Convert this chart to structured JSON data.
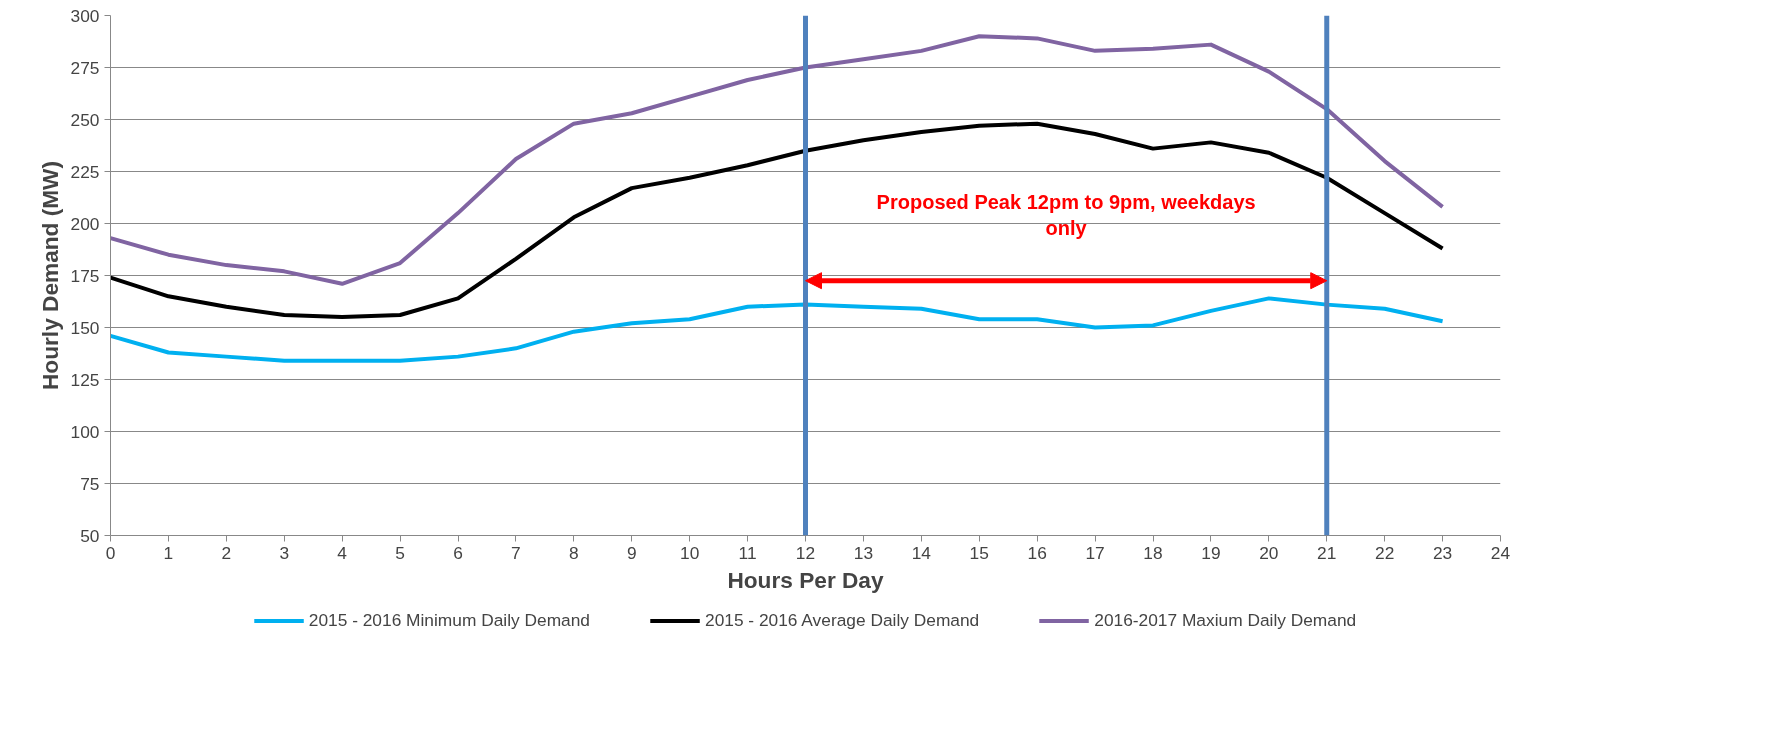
{
  "chart_data": {
    "type": "line",
    "xlabel": "Hours Per Day",
    "ylabel": "Hourly Demand (MW)",
    "x": [
      0,
      1,
      2,
      3,
      4,
      5,
      6,
      7,
      8,
      9,
      10,
      11,
      12,
      13,
      14,
      15,
      16,
      17,
      18,
      19,
      20,
      21,
      22,
      23
    ],
    "series": [
      {
        "name": "2015 - 2016 Minimum Daily Demand",
        "color": "#00b0f0",
        "values": [
          146,
          138,
          136,
          134,
          134,
          134,
          136,
          140,
          148,
          152,
          154,
          160,
          161,
          160,
          159,
          154,
          154,
          150,
          151,
          158,
          164,
          161,
          159,
          153
        ]
      },
      {
        "name": "2015 - 2016 Average Daily Demand",
        "color": "#000000",
        "values": [
          174,
          165,
          160,
          156,
          155,
          156,
          164,
          183,
          203,
          217,
          222,
          228,
          235,
          240,
          244,
          247,
          248,
          243,
          236,
          239,
          234,
          222,
          205,
          188
        ]
      },
      {
        "name": "2016-2017 Maxium Daily Demand",
        "color": "#8064a2",
        "values": [
          193,
          185,
          180,
          177,
          171,
          181,
          205,
          231,
          248,
          253,
          261,
          269,
          275,
          279,
          283,
          290,
          289,
          283,
          284,
          286,
          273,
          255,
          230,
          208
        ]
      }
    ],
    "xlim": [
      0,
      24
    ],
    "xticks": [
      0,
      1,
      2,
      3,
      4,
      5,
      6,
      7,
      8,
      9,
      10,
      11,
      12,
      13,
      14,
      15,
      16,
      17,
      18,
      19,
      20,
      21,
      22,
      23,
      24
    ],
    "ylim": [
      50,
      300
    ],
    "yticks": [
      50,
      75,
      100,
      125,
      150,
      175,
      200,
      225,
      250,
      275,
      300
    ],
    "ref_lines": [
      {
        "axis": "x",
        "value": 12,
        "color": "#4f81bd"
      },
      {
        "axis": "x",
        "value": 21,
        "color": "#4f81bd"
      }
    ],
    "annotations": [
      "Proposed Peak 12pm to 9pm, weekdays only"
    ],
    "grid": "y",
    "legend": "bottom",
    "marker": "none",
    "line_style": "solid"
  }
}
